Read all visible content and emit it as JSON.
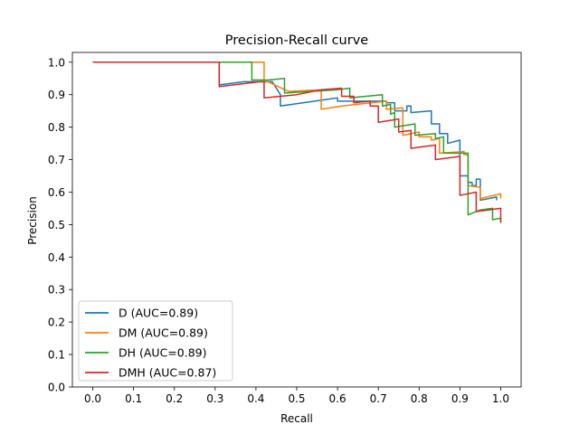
{
  "chart_data": {
    "type": "line",
    "title": "Precision-Recall curve",
    "xlabel": "Recall",
    "ylabel": "Precision",
    "xlim": [
      -0.05,
      1.05
    ],
    "ylim": [
      0.0,
      1.03
    ],
    "xticks": [
      "0.0",
      "0.1",
      "0.2",
      "0.3",
      "0.4",
      "0.5",
      "0.6",
      "0.7",
      "0.8",
      "0.9",
      "1.0"
    ],
    "yticks": [
      "0.0",
      "0.1",
      "0.2",
      "0.3",
      "0.4",
      "0.5",
      "0.6",
      "0.7",
      "0.8",
      "0.9",
      "1.0"
    ],
    "grid": false,
    "legend_position": "lower-left",
    "series": [
      {
        "name": "D (AUC=0.89)",
        "color": "#1f77b4",
        "points": [
          [
            0.0,
            1.0
          ],
          [
            0.31,
            1.0
          ],
          [
            0.31,
            0.93
          ],
          [
            0.37,
            0.94
          ],
          [
            0.44,
            0.94
          ],
          [
            0.46,
            0.9
          ],
          [
            0.46,
            0.865
          ],
          [
            0.6,
            0.89
          ],
          [
            0.6,
            0.88
          ],
          [
            0.72,
            0.88
          ],
          [
            0.72,
            0.875
          ],
          [
            0.74,
            0.875
          ],
          [
            0.74,
            0.85
          ],
          [
            0.77,
            0.85
          ],
          [
            0.77,
            0.865
          ],
          [
            0.78,
            0.865
          ],
          [
            0.78,
            0.845
          ],
          [
            0.83,
            0.85
          ],
          [
            0.83,
            0.81
          ],
          [
            0.85,
            0.81
          ],
          [
            0.85,
            0.78
          ],
          [
            0.87,
            0.78
          ],
          [
            0.87,
            0.75
          ],
          [
            0.9,
            0.76
          ],
          [
            0.9,
            0.65
          ],
          [
            0.92,
            0.65
          ],
          [
            0.92,
            0.63
          ],
          [
            0.93,
            0.63
          ],
          [
            0.93,
            0.62
          ],
          [
            0.94,
            0.62
          ],
          [
            0.94,
            0.64
          ],
          [
            0.95,
            0.64
          ],
          [
            0.95,
            0.575
          ],
          [
            0.99,
            0.585
          ],
          [
            0.99,
            0.575
          ]
        ]
      },
      {
        "name": "DM (AUC=0.89)",
        "color": "#ff7f0e",
        "points": [
          [
            0.0,
            1.0
          ],
          [
            0.42,
            1.0
          ],
          [
            0.42,
            0.945
          ],
          [
            0.48,
            0.91
          ],
          [
            0.56,
            0.915
          ],
          [
            0.56,
            0.855
          ],
          [
            0.61,
            0.865
          ],
          [
            0.72,
            0.88
          ],
          [
            0.72,
            0.855
          ],
          [
            0.76,
            0.86
          ],
          [
            0.76,
            0.775
          ],
          [
            0.8,
            0.785
          ],
          [
            0.8,
            0.77
          ],
          [
            0.83,
            0.77
          ],
          [
            0.83,
            0.76
          ],
          [
            0.85,
            0.765
          ],
          [
            0.85,
            0.72
          ],
          [
            0.91,
            0.725
          ],
          [
            0.91,
            0.715
          ],
          [
            0.92,
            0.715
          ],
          [
            0.92,
            0.62
          ],
          [
            0.95,
            0.615
          ],
          [
            0.95,
            0.58
          ],
          [
            1.0,
            0.595
          ],
          [
            1.0,
            0.58
          ]
        ]
      },
      {
        "name": "DH (AUC=0.89)",
        "color": "#2ca02c",
        "points": [
          [
            0.0,
            1.0
          ],
          [
            0.39,
            1.0
          ],
          [
            0.39,
            0.945
          ],
          [
            0.43,
            0.945
          ],
          [
            0.47,
            0.95
          ],
          [
            0.47,
            0.905
          ],
          [
            0.6,
            0.915
          ],
          [
            0.63,
            0.92
          ],
          [
            0.63,
            0.89
          ],
          [
            0.71,
            0.9
          ],
          [
            0.71,
            0.865
          ],
          [
            0.73,
            0.87
          ],
          [
            0.73,
            0.84
          ],
          [
            0.74,
            0.845
          ],
          [
            0.74,
            0.8
          ],
          [
            0.79,
            0.81
          ],
          [
            0.79,
            0.775
          ],
          [
            0.84,
            0.78
          ],
          [
            0.84,
            0.765
          ],
          [
            0.86,
            0.77
          ],
          [
            0.86,
            0.72
          ],
          [
            0.92,
            0.72
          ],
          [
            0.92,
            0.53
          ],
          [
            0.95,
            0.545
          ],
          [
            0.95,
            0.545
          ],
          [
            0.98,
            0.55
          ],
          [
            0.98,
            0.515
          ],
          [
            1.0,
            0.52
          ],
          [
            1.0,
            0.51
          ]
        ]
      },
      {
        "name": "DMH (AUC=0.87)",
        "color": "#d62728",
        "points": [
          [
            0.0,
            1.0
          ],
          [
            0.31,
            1.0
          ],
          [
            0.31,
            0.925
          ],
          [
            0.41,
            0.94
          ],
          [
            0.42,
            0.94
          ],
          [
            0.42,
            0.89
          ],
          [
            0.5,
            0.9
          ],
          [
            0.56,
            0.915
          ],
          [
            0.61,
            0.92
          ],
          [
            0.61,
            0.895
          ],
          [
            0.64,
            0.895
          ],
          [
            0.64,
            0.875
          ],
          [
            0.68,
            0.88
          ],
          [
            0.68,
            0.865
          ],
          [
            0.7,
            0.865
          ],
          [
            0.7,
            0.815
          ],
          [
            0.75,
            0.825
          ],
          [
            0.75,
            0.785
          ],
          [
            0.78,
            0.79
          ],
          [
            0.78,
            0.735
          ],
          [
            0.84,
            0.745
          ],
          [
            0.84,
            0.7
          ],
          [
            0.9,
            0.71
          ],
          [
            0.9,
            0.59
          ],
          [
            0.94,
            0.6
          ],
          [
            0.94,
            0.54
          ],
          [
            1.0,
            0.55
          ],
          [
            1.0,
            0.505
          ]
        ]
      }
    ]
  }
}
